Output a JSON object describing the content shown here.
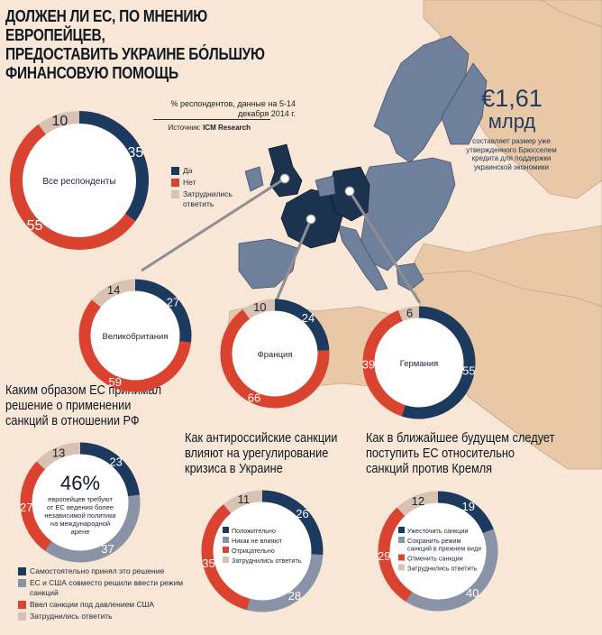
{
  "title": "ДОЛЖЕН ЛИ ЕС, ПО МНЕНИЮ ЕВРОПЕЙЦЕВ,\nПРЕДОСТАВИТЬ УКРАИНЕ БО́ЛЬШУЮ\nФИНАНСОВУЮ ПОМОЩЬ",
  "subnote": "% респондентов, данные на 5-14 декабря 2014 г.",
  "source_label": "Источник:",
  "source_name": "ICM Research",
  "callout": {
    "amount": "€1,61",
    "unit": "млрд",
    "text": "составляет размер уже утвержденного Брюсселем кредита для поддержки украинской экономики"
  },
  "colors": {
    "navy": "#1c3a5e",
    "red": "#d9432f",
    "beige": "#d7c2b3",
    "gray": "#8a93a6",
    "map_other": "#e8c8a6",
    "map_eu": "#6f809c",
    "map_highlight": "#1c3350"
  },
  "legend_main": [
    {
      "label": "Да",
      "color": "#1c3a5e"
    },
    {
      "label": "Нет",
      "color": "#d9432f"
    },
    {
      "label": "Затруднились ответить",
      "color": "#d7c2b3"
    }
  ],
  "q2": "Каким образом ЕС принимал решение о применении санкций в отношении РФ",
  "q3": "Как антироссийские санкции влияют на урегулирование кризиса в Украине",
  "q4": "Как в ближайшее будущем следует поступить ЕС относительно санкций против Кремля",
  "center_big": "46%",
  "center_small": "европейцев требуют от ЕС ведения более независимой политики на международной арене",
  "legend_q2": [
    {
      "label": "Самостоятельно принял это решение",
      "color": "#1c3a5e"
    },
    {
      "label": "ЕС и США совместо решили ввести режим санкций",
      "color": "#8a93a6"
    },
    {
      "label": "Ввел санкции под давлением США",
      "color": "#d9432f"
    },
    {
      "label": "Затруднились ответить",
      "color": "#d7c2b3"
    }
  ],
  "legend_q3": [
    {
      "label": "Положительно",
      "color": "#1c3a5e"
    },
    {
      "label": "Никак не влияют",
      "color": "#8a93a6"
    },
    {
      "label": "Отрицательно",
      "color": "#d9432f"
    },
    {
      "label": "Затруднились ответить",
      "color": "#d7c2b3"
    }
  ],
  "legend_q4": [
    {
      "label": "Ужесточить санкции",
      "color": "#1c3a5e"
    },
    {
      "label": "Сохранить режим санкций в прежнем виде",
      "color": "#8a93a6"
    },
    {
      "label": "Отменить санкции",
      "color": "#d9432f"
    },
    {
      "label": "Затруднились ответить",
      "color": "#d7c2b3"
    }
  ],
  "chart_data": [
    {
      "type": "pie",
      "id": "all",
      "center_label": "Все респонденты",
      "categories": [
        "Да",
        "Нет",
        "Затруднились ответить"
      ],
      "values": [
        35,
        55,
        10
      ]
    },
    {
      "type": "pie",
      "id": "uk",
      "center_label": "Великобритания",
      "categories": [
        "Да",
        "Нет",
        "Затруднились ответить"
      ],
      "values": [
        27,
        59,
        14
      ]
    },
    {
      "type": "pie",
      "id": "fr",
      "center_label": "Франция",
      "categories": [
        "Да",
        "Нет",
        "Затруднились ответить"
      ],
      "values": [
        24,
        66,
        10
      ]
    },
    {
      "type": "pie",
      "id": "de",
      "center_label": "Германия",
      "categories": [
        "Да",
        "Нет",
        "Затруднились ответить"
      ],
      "values": [
        55,
        39,
        6
      ]
    },
    {
      "type": "pie",
      "id": "q2",
      "categories": [
        "Самостоятельно принял это решение",
        "ЕС и США совместо решили ввести режим санкций",
        "Ввел санкции под давлением США",
        "Затруднились ответить"
      ],
      "values": [
        23,
        37,
        27,
        13
      ]
    },
    {
      "type": "pie",
      "id": "q3",
      "categories": [
        "Положительно",
        "Никак не влияют",
        "Отрицательно",
        "Затруднились ответить"
      ],
      "values": [
        26,
        28,
        35,
        11
      ]
    },
    {
      "type": "pie",
      "id": "q4",
      "categories": [
        "Ужесточить санкции",
        "Сохранить режим санкций в прежнем виде",
        "Отменить санкции",
        "Затруднились ответить"
      ],
      "values": [
        19,
        40,
        29,
        12
      ]
    }
  ]
}
